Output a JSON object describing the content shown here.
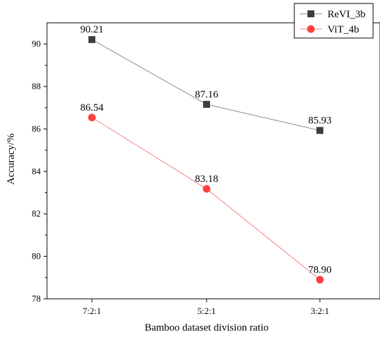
{
  "chart_data": {
    "type": "line",
    "xlabel": "Bamboo dataset division ratio",
    "ylabel": "Accuracy/%",
    "categories": [
      "7:2:1",
      "5:2:1",
      "3:2:1"
    ],
    "ylim": [
      78,
      91
    ],
    "yticks": [
      "78",
      "80",
      "82",
      "84",
      "86",
      "88",
      "90"
    ],
    "grid": false,
    "legend_position": "top-right",
    "series": [
      {
        "name": "ReVI_3b",
        "values": [
          90.21,
          87.16,
          85.93
        ],
        "labels": [
          "90.21",
          "87.16",
          "85.93"
        ],
        "color": "#3d3d3d",
        "line_color": "#8a8a8a",
        "marker": "square"
      },
      {
        "name": "ViT_4b",
        "values": [
          86.54,
          83.18,
          78.9
        ],
        "labels": [
          "86.54",
          "83.18",
          "78.90"
        ],
        "color": "#ff4040",
        "line_color": "#f07f7f",
        "marker": "circle"
      }
    ]
  }
}
